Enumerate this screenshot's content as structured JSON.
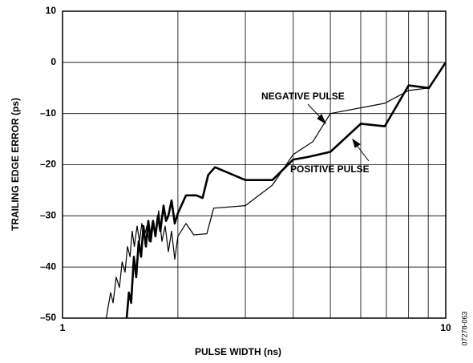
{
  "chart_data": {
    "type": "line",
    "xlabel": "PULSE WIDTH (ns)",
    "ylabel": "TRAILING EDGE ERROR (ps)",
    "figure_code": "07278-063",
    "xscale": "log",
    "xlim": [
      1,
      10
    ],
    "xticks": [
      1,
      10
    ],
    "xminor": [
      2,
      3,
      4,
      5,
      6,
      7,
      8,
      9
    ],
    "ylim": [
      -50,
      10
    ],
    "yticks": [
      {
        "value": -50,
        "label": "–50"
      },
      {
        "value": -40,
        "label": "–40"
      },
      {
        "value": -30,
        "label": "–30"
      },
      {
        "value": -20,
        "label": "–20"
      },
      {
        "value": -10,
        "label": "–10"
      },
      0,
      10
    ],
    "grid": true,
    "annotations": [
      "NEGATIVE PULSE",
      "POSITIVE PULSE"
    ],
    "series": [
      {
        "name": "NEGATIVE PULSE",
        "color": "#000000",
        "width": 1.2,
        "x": [
          1.3,
          1.335,
          1.355,
          1.38,
          1.408,
          1.43,
          1.456,
          1.477,
          1.5,
          1.52,
          1.54,
          1.565,
          1.588,
          1.61,
          1.635,
          1.659,
          1.683,
          1.716,
          1.748,
          1.782,
          1.817,
          1.853,
          1.889,
          1.925,
          1.963,
          2.0,
          2.1,
          2.2,
          2.38,
          2.48,
          3,
          3.53,
          4,
          4.5,
          5,
          6.93,
          8,
          9.04,
          10
        ],
        "values": [
          -50,
          -45,
          -47,
          -42,
          -44,
          -39,
          -41,
          -36,
          -38,
          -33,
          -36,
          -32,
          -35,
          -31.5,
          -34,
          -32,
          -35,
          -31,
          -34,
          -29,
          -35,
          -32,
          -37,
          -33,
          -38.5,
          -34,
          -31.5,
          -33.7,
          -33.5,
          -28.5,
          -28,
          -24,
          -18,
          -15.5,
          -10,
          -8,
          -5.5,
          -5,
          0
        ]
      },
      {
        "name": "POSITIVE PULSE",
        "color": "#000000",
        "width": 2.6,
        "x": [
          1.47,
          1.49,
          1.51,
          1.535,
          1.557,
          1.58,
          1.603,
          1.626,
          1.65,
          1.674,
          1.698,
          1.723,
          1.748,
          1.774,
          1.8,
          1.835,
          1.862,
          1.889,
          1.925,
          1.963,
          2.0,
          2.1,
          2.235,
          2.32,
          2.4,
          2.5,
          3,
          3.53,
          4,
          4.37,
          5,
          6.0,
          6.93,
          8,
          9.04,
          10
        ],
        "values": [
          -50,
          -45,
          -47,
          -38,
          -42,
          -35,
          -38,
          -32,
          -36,
          -31,
          -35,
          -31,
          -34,
          -30,
          -33,
          -28,
          -31,
          -30,
          -27,
          -31.5,
          -29.5,
          -26,
          -26,
          -26.5,
          -22,
          -20.5,
          -23,
          -23,
          -19,
          -18.5,
          -17.5,
          -12,
          -12.5,
          -4.5,
          -5,
          0
        ]
      }
    ]
  }
}
